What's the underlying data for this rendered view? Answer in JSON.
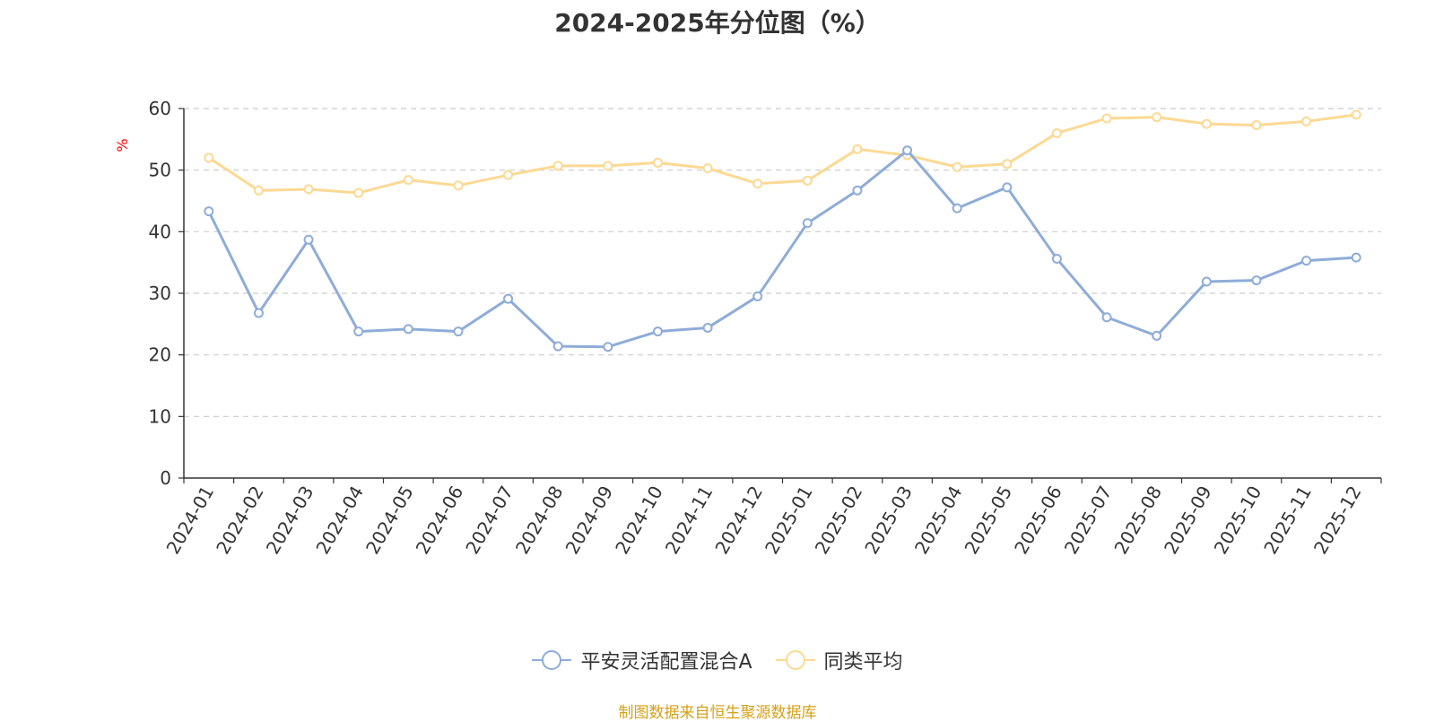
{
  "chart_data": {
    "type": "line",
    "title": "2024-2025年分位图（%）",
    "ylabel": "%",
    "xlabel": "",
    "ylim": [
      0,
      60
    ],
    "yticks": [
      0,
      10,
      20,
      30,
      40,
      50,
      60
    ],
    "grid": true,
    "legend_position": "bottom",
    "categories": [
      "2024-01",
      "2024-02",
      "2024-03",
      "2024-04",
      "2024-05",
      "2024-06",
      "2024-07",
      "2024-08",
      "2024-09",
      "2024-10",
      "2024-11",
      "2024-12",
      "2025-01",
      "2025-02",
      "2025-03",
      "2025-04",
      "2025-05",
      "2025-06",
      "2025-07",
      "2025-08",
      "2025-09",
      "2025-10",
      "2025-11",
      "2025-12"
    ],
    "series": [
      {
        "name": "平安灵活配置混合A",
        "color": "#8eacd8",
        "values": [
          43.3,
          26.8,
          38.7,
          23.8,
          24.2,
          23.8,
          29.1,
          21.4,
          21.3,
          23.8,
          24.4,
          29.5,
          41.4,
          46.7,
          53.2,
          43.8,
          47.2,
          35.6,
          26.1,
          23.1,
          31.9,
          32.1,
          35.3,
          35.8
        ]
      },
      {
        "name": "同类平均",
        "color": "#fcd993",
        "values": [
          52.0,
          46.7,
          46.9,
          46.3,
          48.4,
          47.5,
          49.2,
          50.7,
          50.7,
          51.2,
          50.3,
          47.8,
          48.3,
          53.4,
          52.4,
          50.5,
          51.0,
          56.0,
          58.4,
          58.6,
          57.5,
          57.3,
          57.9,
          59.0
        ]
      }
    ]
  },
  "footer": {
    "source": "制图数据来自恒生聚源数据库"
  }
}
